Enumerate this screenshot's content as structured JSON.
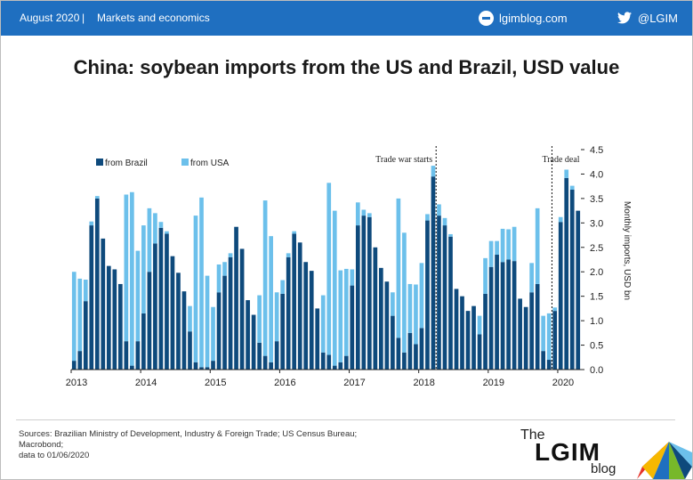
{
  "header": {
    "date": "August 2020",
    "separator": "|",
    "section": "Markets and economics",
    "blog_url": "lgimblog.com",
    "twitter_handle": "@LGIM",
    "blog_icon": "globe-icon",
    "twitter_icon": "twitter-bird-icon",
    "background_color": "#1f6fc0"
  },
  "title": "China: soybean imports from the US and Brazil, USD value",
  "footer": {
    "sources_line1": "Sources: Brazilian Ministry of Development, Industry & Foreign Trade; US Census Bureau; Macrobond;",
    "sources_line2": "data to 01/06/2020",
    "logo_the": "The",
    "logo_main": "LGIM",
    "logo_blog": "blog"
  },
  "chart_data": {
    "type": "bar",
    "stacked": true,
    "x_label_years": [
      "2013",
      "2014",
      "2015",
      "2016",
      "2017",
      "2018",
      "2019",
      "2020"
    ],
    "start_month": "2013-01",
    "ylabel": "Monthly imports, USD bn",
    "ylim": [
      0,
      4.5
    ],
    "yticks": [
      "0.0",
      "0.5",
      "1.0",
      "1.5",
      "2.0",
      "2.5",
      "3.0",
      "3.5",
      "4.0",
      "4.5"
    ],
    "legend_position": "top-left",
    "annotations": [
      {
        "label": "Trade war starts",
        "x_month": "2018-04"
      },
      {
        "label": "Trade deal",
        "x_month": "2019-12"
      }
    ],
    "series": [
      {
        "name": "from Brazil",
        "color": "#0e4a7c",
        "values": [
          0.18,
          0.38,
          1.4,
          2.95,
          3.5,
          2.68,
          2.12,
          2.05,
          1.75,
          0.58,
          0.08,
          0.58,
          1.15,
          2.0,
          2.58,
          2.9,
          2.78,
          2.32,
          1.98,
          1.6,
          0.78,
          0.15,
          0.05,
          0.05,
          0.18,
          1.58,
          1.92,
          2.3,
          2.92,
          2.47,
          1.42,
          1.12,
          0.55,
          0.28,
          0.15,
          0.58,
          1.55,
          2.3,
          2.78,
          2.6,
          2.2,
          2.02,
          1.25,
          0.35,
          0.3,
          0.08,
          0.15,
          0.28,
          1.72,
          2.95,
          3.15,
          3.12,
          2.5,
          2.08,
          1.8,
          1.1,
          0.65,
          0.35,
          0.75,
          0.52,
          0.85,
          3.05,
          3.95,
          3.15,
          2.95,
          2.72,
          1.65,
          1.5,
          1.2,
          1.3,
          0.72,
          1.55,
          2.1,
          2.35,
          2.2,
          2.25,
          2.22,
          1.45,
          1.28,
          1.58,
          1.75,
          0.38,
          0.2,
          1.2,
          3.02,
          3.92,
          3.68,
          3.25
        ]
      },
      {
        "name": "from USA",
        "color": "#6cc0eb",
        "values": [
          1.82,
          1.48,
          0.44,
          0.08,
          0.05,
          0.0,
          0.0,
          0.0,
          0.0,
          3.0,
          3.55,
          1.85,
          1.8,
          1.3,
          0.62,
          0.12,
          0.05,
          0.0,
          0.0,
          0.0,
          0.52,
          3.0,
          3.47,
          1.87,
          1.1,
          0.57,
          0.28,
          0.08,
          0.0,
          0.0,
          0.0,
          0.0,
          0.97,
          3.18,
          2.58,
          1.0,
          0.28,
          0.08,
          0.05,
          0.0,
          0.0,
          0.0,
          0.0,
          1.17,
          3.52,
          3.17,
          1.88,
          1.78,
          0.33,
          0.47,
          0.12,
          0.08,
          0.0,
          0.0,
          0.0,
          0.48,
          2.85,
          2.45,
          1.0,
          1.22,
          1.33,
          0.13,
          0.22,
          0.23,
          0.15,
          0.05,
          0.0,
          0.0,
          0.0,
          0.0,
          0.38,
          0.73,
          0.53,
          0.28,
          0.68,
          0.62,
          0.7,
          0.0,
          0.0,
          0.6,
          1.55,
          0.72,
          0.95,
          0.07,
          0.1,
          0.17,
          0.08,
          0.0
        ]
      }
    ]
  }
}
